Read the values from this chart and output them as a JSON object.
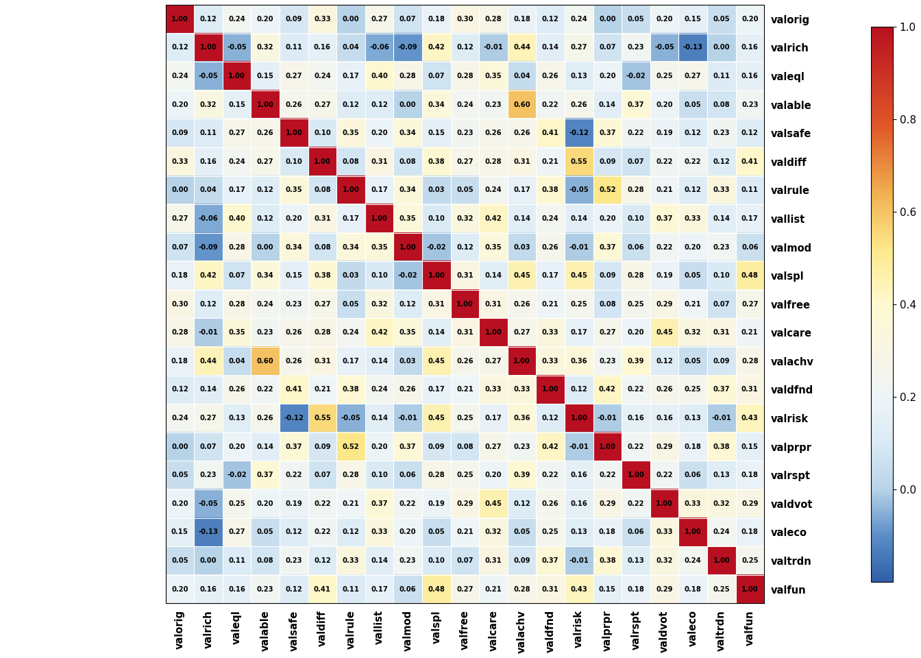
{
  "labels": [
    "valorig",
    "valrich",
    "valeql",
    "valable",
    "valsafe",
    "valdiff",
    "valrule",
    "vallist",
    "valmod",
    "valspl",
    "valfree",
    "valcare",
    "valachv",
    "valdfnd",
    "valrisk",
    "valprpr",
    "valrspt",
    "valdvot",
    "valeco",
    "valtrdn",
    "valfun"
  ],
  "matrix": [
    [
      1.0,
      0.12,
      0.24,
      0.2,
      0.09,
      0.33,
      0.0,
      0.27,
      0.07,
      0.18,
      0.3,
      0.28,
      0.18,
      0.12,
      0.24,
      0.0,
      0.05,
      0.2,
      0.15,
      0.05,
      0.2
    ],
    [
      0.12,
      1.0,
      -0.05,
      0.32,
      0.11,
      0.16,
      0.04,
      -0.06,
      -0.09,
      0.42,
      0.12,
      -0.01,
      0.44,
      0.14,
      0.27,
      0.07,
      0.23,
      -0.05,
      -0.13,
      -0.0,
      0.16
    ],
    [
      0.24,
      -0.05,
      1.0,
      0.15,
      0.27,
      0.24,
      0.17,
      0.4,
      0.28,
      0.07,
      0.28,
      0.35,
      0.04,
      0.26,
      0.13,
      0.2,
      -0.02,
      0.25,
      0.27,
      0.11,
      0.16
    ],
    [
      0.2,
      0.32,
      0.15,
      1.0,
      0.26,
      0.27,
      0.12,
      0.12,
      0.0,
      0.34,
      0.24,
      0.23,
      0.6,
      0.22,
      0.26,
      0.14,
      0.37,
      0.2,
      0.05,
      0.08,
      0.23
    ],
    [
      0.09,
      0.11,
      0.27,
      0.26,
      1.0,
      0.1,
      0.35,
      0.2,
      0.34,
      0.15,
      0.23,
      0.26,
      0.26,
      0.41,
      -0.12,
      0.37,
      0.22,
      0.19,
      0.12,
      0.23,
      0.12
    ],
    [
      0.33,
      0.16,
      0.24,
      0.27,
      0.1,
      1.0,
      0.08,
      0.31,
      0.08,
      0.38,
      0.27,
      0.28,
      0.31,
      0.21,
      0.55,
      0.09,
      0.07,
      0.22,
      0.22,
      0.12,
      0.41
    ],
    [
      0.0,
      0.04,
      0.17,
      0.12,
      0.35,
      0.08,
      1.0,
      0.17,
      0.34,
      0.03,
      0.05,
      0.24,
      0.17,
      0.38,
      -0.05,
      0.52,
      0.28,
      0.21,
      0.12,
      0.33,
      0.11
    ],
    [
      0.27,
      -0.06,
      0.4,
      0.12,
      0.2,
      0.31,
      0.17,
      1.0,
      0.35,
      0.1,
      0.32,
      0.42,
      0.14,
      0.24,
      0.14,
      0.2,
      0.1,
      0.37,
      0.33,
      0.14,
      0.17
    ],
    [
      0.07,
      -0.09,
      0.28,
      0.0,
      0.34,
      0.08,
      0.34,
      0.35,
      1.0,
      -0.02,
      0.12,
      0.35,
      0.03,
      0.26,
      -0.01,
      0.37,
      0.06,
      0.22,
      0.2,
      0.23,
      0.06
    ],
    [
      0.18,
      0.42,
      0.07,
      0.34,
      0.15,
      0.38,
      0.03,
      0.1,
      -0.02,
      1.0,
      0.31,
      0.14,
      0.45,
      0.17,
      0.45,
      0.09,
      0.28,
      0.19,
      0.05,
      0.1,
      0.48
    ],
    [
      0.3,
      0.12,
      0.28,
      0.24,
      0.23,
      0.27,
      0.05,
      0.32,
      0.12,
      0.31,
      1.0,
      0.31,
      0.26,
      0.21,
      0.25,
      0.08,
      0.25,
      0.29,
      0.21,
      0.07,
      0.27
    ],
    [
      0.28,
      -0.01,
      0.35,
      0.23,
      0.26,
      0.28,
      0.24,
      0.42,
      0.35,
      0.14,
      0.31,
      1.0,
      0.27,
      0.33,
      0.17,
      0.27,
      0.2,
      0.45,
      0.32,
      0.31,
      0.21
    ],
    [
      0.18,
      0.44,
      0.04,
      0.6,
      0.26,
      0.31,
      0.17,
      0.14,
      0.03,
      0.45,
      0.26,
      0.27,
      1.0,
      0.33,
      0.36,
      0.23,
      0.39,
      0.12,
      0.05,
      0.09,
      0.28
    ],
    [
      0.12,
      0.14,
      0.26,
      0.22,
      0.41,
      0.21,
      0.38,
      0.24,
      0.26,
      0.17,
      0.21,
      0.33,
      0.33,
      1.0,
      0.12,
      0.42,
      0.22,
      0.26,
      0.25,
      0.37,
      0.31
    ],
    [
      0.24,
      0.27,
      0.13,
      0.26,
      -0.12,
      0.55,
      -0.05,
      0.14,
      -0.01,
      0.45,
      0.25,
      0.17,
      0.36,
      0.12,
      1.0,
      -0.01,
      0.16,
      0.16,
      0.13,
      -0.01,
      0.43
    ],
    [
      0.0,
      0.07,
      0.2,
      0.14,
      0.37,
      0.09,
      0.52,
      0.2,
      0.37,
      0.09,
      0.08,
      0.27,
      0.23,
      0.42,
      -0.01,
      1.0,
      0.22,
      0.29,
      0.18,
      0.38,
      0.15
    ],
    [
      0.05,
      0.23,
      -0.02,
      0.37,
      0.22,
      0.07,
      0.28,
      0.1,
      0.06,
      0.28,
      0.25,
      0.2,
      0.39,
      0.22,
      0.16,
      0.22,
      1.0,
      0.22,
      0.06,
      0.13,
      0.18
    ],
    [
      0.2,
      -0.05,
      0.25,
      0.2,
      0.19,
      0.22,
      0.21,
      0.37,
      0.22,
      0.19,
      0.29,
      0.45,
      0.12,
      0.26,
      0.16,
      0.29,
      0.22,
      1.0,
      0.33,
      0.32,
      0.29
    ],
    [
      0.15,
      -0.13,
      0.27,
      0.05,
      0.12,
      0.22,
      0.12,
      0.33,
      0.2,
      0.05,
      0.21,
      0.32,
      0.05,
      0.25,
      0.13,
      0.18,
      0.06,
      0.33,
      1.0,
      0.24,
      0.18
    ],
    [
      0.05,
      -0.0,
      0.11,
      0.08,
      0.23,
      0.12,
      0.33,
      0.14,
      0.23,
      0.1,
      0.07,
      0.31,
      0.09,
      0.37,
      -0.01,
      0.38,
      0.13,
      0.32,
      0.24,
      1.0,
      0.25
    ],
    [
      0.2,
      0.16,
      0.16,
      0.23,
      0.12,
      0.41,
      0.11,
      0.17,
      0.06,
      0.48,
      0.27,
      0.21,
      0.28,
      0.31,
      0.43,
      0.15,
      0.18,
      0.29,
      0.18,
      0.25,
      1.0
    ]
  ],
  "vmin": -0.2,
  "vmax": 1.0,
  "colorbar_ticks": [
    0,
    0.2,
    0.4,
    0.6,
    0.8,
    1.0
  ],
  "cell_fontsize": 7.2,
  "label_fontsize": 10.5,
  "figsize": [
    13.44,
    9.6
  ],
  "dpi": 100,
  "bg_color": "#f0f0f0"
}
